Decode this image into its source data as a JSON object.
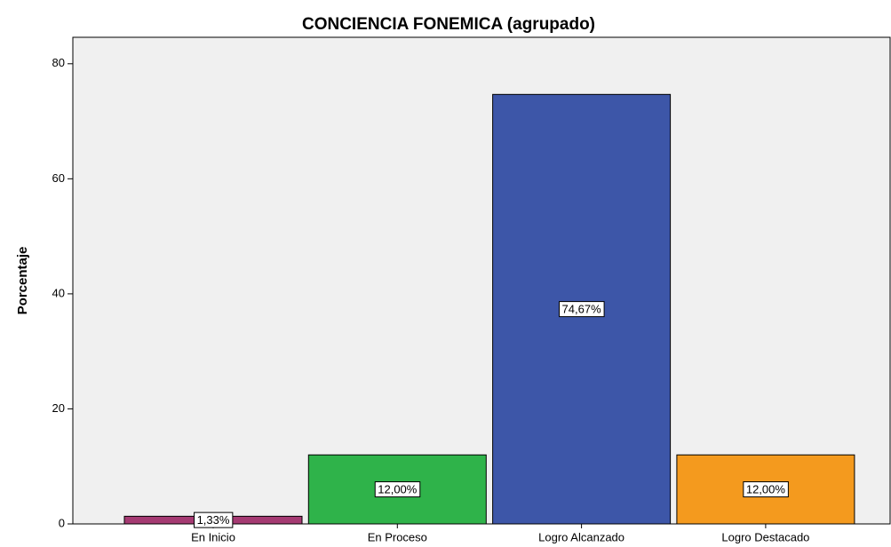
{
  "chart_data": {
    "type": "bar",
    "title": "CONCIENCIA FONEMICA (agrupado)",
    "y_label": "Porcentaje",
    "categories": [
      "En Inicio",
      "En Proceso",
      "Logro Alcanzado",
      "Logro Destacado"
    ],
    "values": [
      1.33,
      12.0,
      74.67,
      12.0
    ],
    "value_labels": [
      "1,33%",
      "12,00%",
      "74,67%",
      "12,00%"
    ],
    "colors": [
      "#a53a72",
      "#2fb34a",
      "#3d56a8",
      "#f49a1e"
    ],
    "ylim": [
      0,
      84.6
    ],
    "yticks": [
      0,
      20,
      40,
      60,
      80
    ],
    "grid": false
  }
}
